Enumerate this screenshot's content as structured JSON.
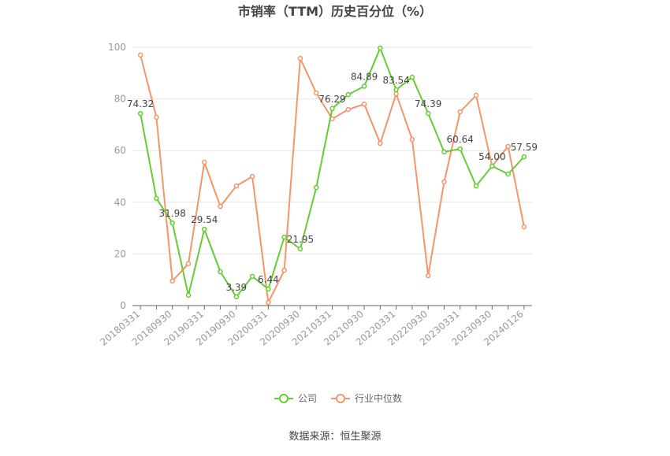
{
  "chart_data": {
    "type": "line",
    "title": "市销率（TTM）历史百分位（%）",
    "source": "数据来源：恒生聚源",
    "categories": [
      "20180331",
      null,
      "20180930",
      null,
      "20190331",
      null,
      "20190930",
      null,
      "20200331",
      null,
      "20200930",
      null,
      "20210331",
      null,
      "20210930",
      null,
      "20220331",
      null,
      "20220930",
      null,
      "20230331",
      null,
      "20230930",
      null,
      "20240126"
    ],
    "series": [
      {
        "name": "公司",
        "color": "#66cc33",
        "values": [
          74.32,
          41.5,
          31.98,
          4.0,
          29.54,
          13.1,
          3.39,
          11.3,
          6.44,
          26.5,
          21.95,
          45.7,
          76.29,
          81.7,
          84.89,
          99.7,
          83.54,
          88.4,
          74.39,
          59.5,
          60.64,
          46.3,
          54.0,
          50.9,
          57.59
        ],
        "value_labels": [
          "74.32",
          null,
          "31.98",
          null,
          "29.54",
          null,
          "3.39",
          null,
          "6.44",
          null,
          "21.95",
          null,
          "76.29",
          null,
          "84.89",
          null,
          "83.54",
          null,
          "74.39",
          null,
          "60.64",
          null,
          "54.00",
          null,
          "57.59"
        ]
      },
      {
        "name": "行业中位数",
        "color": "#f4956a",
        "values": [
          97.0,
          72.9,
          9.5,
          16.2,
          55.5,
          38.4,
          46.3,
          50.0,
          1.2,
          13.7,
          95.7,
          82.3,
          72.3,
          75.9,
          78.0,
          62.8,
          82.0,
          64.3,
          11.6,
          47.9,
          75.0,
          81.4,
          54.0,
          61.6,
          30.5
        ]
      }
    ],
    "ylim": [
      0,
      100
    ],
    "yticks": [
      0,
      20,
      40,
      60,
      80,
      100
    ],
    "grid": true
  }
}
